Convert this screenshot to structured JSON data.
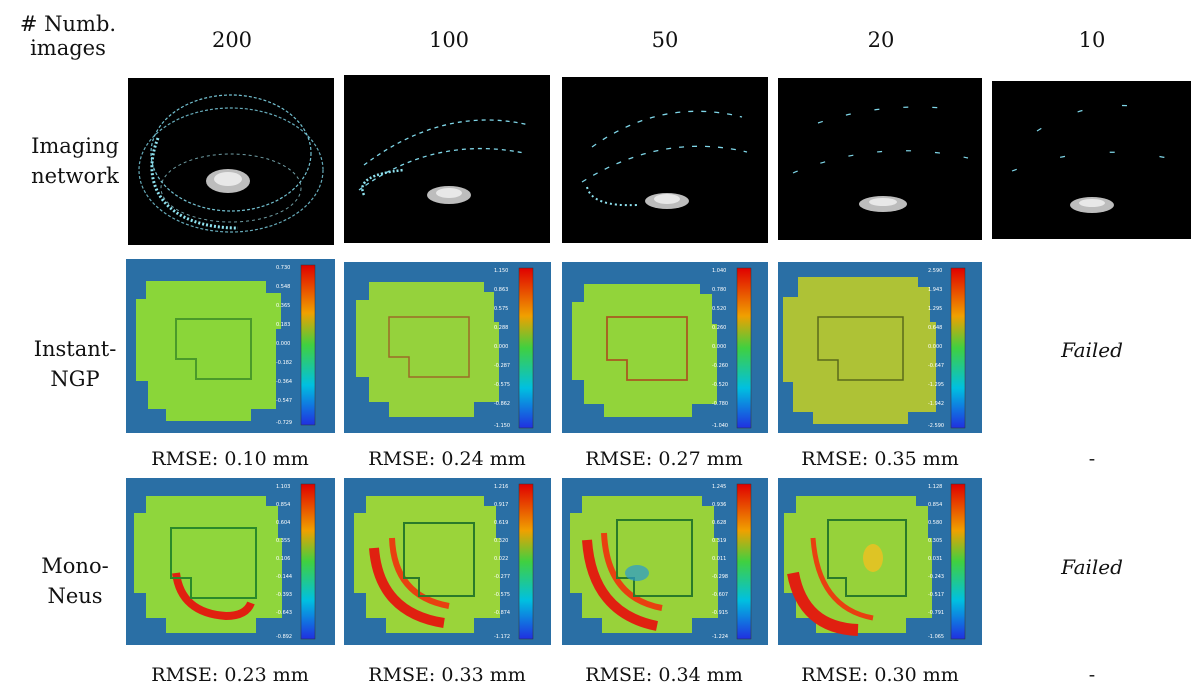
{
  "header": {
    "corner_label_line1": "# Numb.",
    "corner_label_line2": "images",
    "columns": [
      "200",
      "100",
      "50",
      "20",
      "10"
    ]
  },
  "rows": {
    "imaging": {
      "line1": "Imaging",
      "line2": "network"
    },
    "instant": {
      "line1": "Instant-",
      "line2": "NGP"
    },
    "mono": {
      "line1": "Mono-",
      "line2": "Neus"
    }
  },
  "instant_ngp": {
    "colorbars": [
      [
        "0.730",
        "0.548",
        "0.365",
        "0.183",
        "0.000",
        "-0.182",
        "-0.364",
        "-0.547",
        "-0.729"
      ],
      [
        "1.150",
        "0.863",
        "0.575",
        "0.288",
        "0.000",
        "-0.287",
        "-0.575",
        "-0.862",
        "-1.150"
      ],
      [
        "1.040",
        "0.780",
        "0.520",
        "0.260",
        "0.000",
        "-0.260",
        "-0.520",
        "-0.780",
        "-1.040"
      ],
      [
        "2.590",
        "1.943",
        "1.295",
        "0.648",
        "0.000",
        "-0.647",
        "-1.295",
        "-1.942",
        "-2.590"
      ]
    ],
    "rmse": [
      "RMSE: 0.10 mm",
      "RMSE: 0.24 mm",
      "RMSE: 0.27 mm",
      "RMSE: 0.35 mm"
    ],
    "failed_label": "Failed",
    "failed_rmse": "-"
  },
  "mono_neus": {
    "colorbars": [
      [
        "1.103",
        "0.854",
        "0.604",
        "0.355",
        "0.106",
        "-0.144",
        "-0.393",
        "-0.643",
        "-0.892"
      ],
      [
        "1.216",
        "0.917",
        "0.619",
        "0.320",
        "0.022",
        "-0.277",
        "-0.575",
        "-0.874",
        "-1.172"
      ],
      [
        "1.245",
        "0.936",
        "0.628",
        "0.319",
        "0.011",
        "-0.298",
        "-0.607",
        "-0.915",
        "-1.224"
      ],
      [
        "1.128",
        "0.854",
        "0.580",
        "0.305",
        "0.031",
        "-0.243",
        "-0.517",
        "-0.791",
        "-1.065"
      ]
    ],
    "rmse": [
      "RMSE: 0.23 mm",
      "RMSE: 0.33 mm",
      "RMSE: 0.34 mm",
      "RMSE: 0.30 mm"
    ],
    "failed_label": "Failed",
    "failed_rmse": "-"
  }
}
